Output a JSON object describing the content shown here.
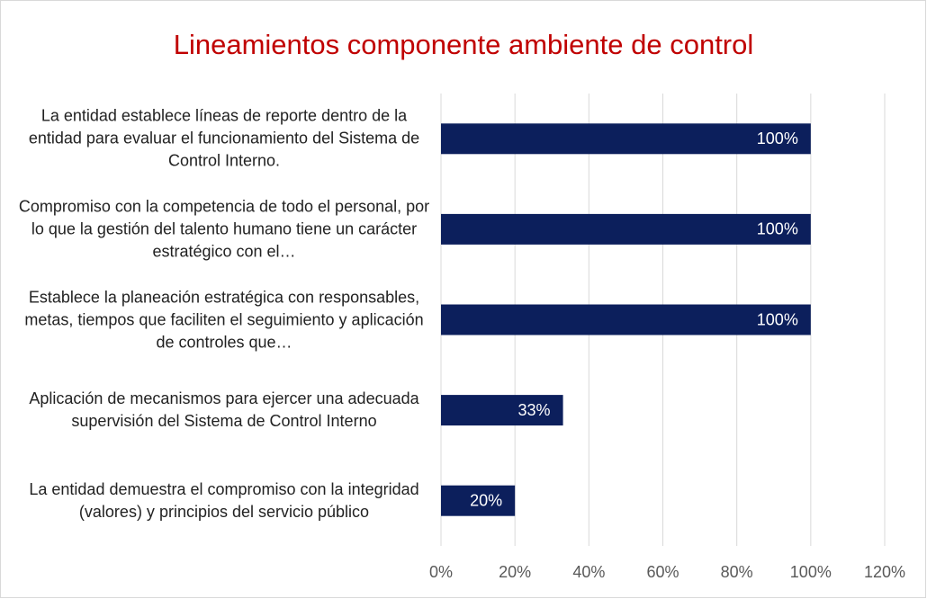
{
  "chart_data": {
    "type": "barh",
    "title": "Lineamientos componente ambiente de control",
    "categories": [
      "La entidad establece líneas de reporte dentro de la entidad para evaluar el funcionamiento del Sistema de Control Interno.",
      "Compromiso con la competencia de todo el personal, por lo que la gestión del talento humano tiene un carácter estratégico con el…",
      "Establece la planeación estratégica con responsables, metas, tiempos que faciliten el seguimiento y aplicación de controles que…",
      "Aplicación de mecanismos para ejercer una adecuada supervisión del Sistema de Control Interno",
      "La entidad demuestra el compromiso con la integridad (valores) y principios del servicio público"
    ],
    "values": [
      100,
      100,
      100,
      33,
      20
    ],
    "value_labels": [
      "100%",
      "100%",
      "100%",
      "33%",
      "20%"
    ],
    "color": "#0c1f5c",
    "xlim": [
      0,
      120
    ],
    "xticks": [
      {
        "value": 0,
        "label": "0%"
      },
      {
        "value": 20,
        "label": "20%"
      },
      {
        "value": 40,
        "label": "40%"
      },
      {
        "value": 60,
        "label": "60%"
      },
      {
        "value": 80,
        "label": "80%"
      },
      {
        "value": 100,
        "label": "100%"
      },
      {
        "value": 120,
        "label": "120%"
      }
    ],
    "grid": true
  }
}
